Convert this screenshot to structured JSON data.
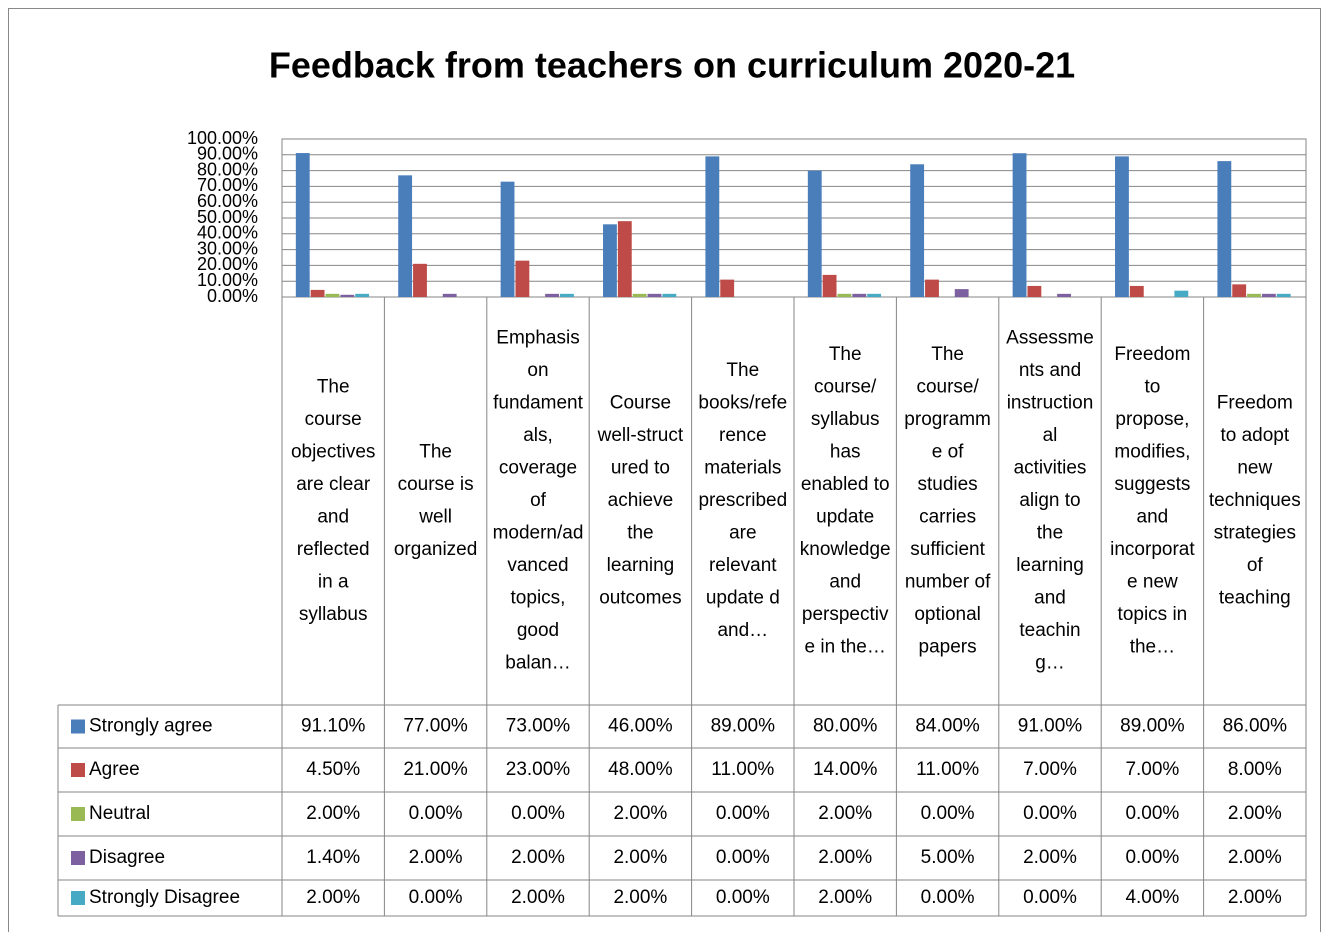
{
  "chart_data": {
    "type": "bar",
    "title": "Feedback from teachers on curriculum 2020-21",
    "categories": [
      "The course objectives are clear and reflected in a syllabus",
      "The course is well organized",
      "Emphasis on fundamentals, coverage of modern/advanced topics, good balan…",
      "Course well-structured to achieve the learning outcomes",
      "The books/reference materials prescribed are relevant update d and…",
      "The course/ syllabus has enabled to update knowledge and perspective in the…",
      "The course/ programme of studies carries sufficient number of optional papers",
      "Assessments and instructional activities align to the learning and teachin g…",
      "Freedom to propose, modifies, suggests and incorporate new topics in the…",
      "Freedom to adopt new techniques strategies of teaching"
    ],
    "series": [
      {
        "name": "Strongly agree",
        "color": "#4a7ebb",
        "values": [
          91.1,
          77,
          73,
          46,
          89,
          80,
          84,
          91,
          89,
          86
        ],
        "value_labels": [
          "91.10%",
          "77.00%",
          "73.00%",
          "46.00%",
          "89.00%",
          "80.00%",
          "84.00%",
          "91.00%",
          "89.00%",
          "86.00%"
        ]
      },
      {
        "name": "Agree",
        "color": "#be4b48",
        "values": [
          4.5,
          21,
          23,
          48,
          11,
          14,
          11,
          7,
          7,
          8
        ],
        "value_labels": [
          "4.50%",
          "21.00%",
          "23.00%",
          "48.00%",
          "11.00%",
          "14.00%",
          "11.00%",
          "7.00%",
          "7.00%",
          "8.00%"
        ]
      },
      {
        "name": "Neutral",
        "color": "#98b954",
        "values": [
          2,
          0,
          0,
          2,
          0,
          2,
          0,
          0,
          0,
          2
        ],
        "value_labels": [
          "2.00%",
          "0.00%",
          "0.00%",
          "2.00%",
          "0.00%",
          "2.00%",
          "0.00%",
          "0.00%",
          "0.00%",
          "2.00%"
        ]
      },
      {
        "name": "Disagree",
        "color": "#7d60a0",
        "values": [
          1.4,
          2,
          2,
          2,
          0,
          2,
          5,
          2,
          0,
          2
        ],
        "value_labels": [
          "1.40%",
          "2.00%",
          "2.00%",
          "2.00%",
          "0.00%",
          "2.00%",
          "5.00%",
          "2.00%",
          "0.00%",
          "2.00%"
        ]
      },
      {
        "name": "Strongly Disagree",
        "color": "#46aac5",
        "values": [
          2,
          0,
          2,
          2,
          0,
          2,
          0,
          0,
          4,
          2
        ],
        "value_labels": [
          "2.00%",
          "0.00%",
          "2.00%",
          "2.00%",
          "0.00%",
          "2.00%",
          "0.00%",
          "0.00%",
          "4.00%",
          "2.00%"
        ]
      }
    ],
    "ylim": [
      0,
      100
    ],
    "yticks": [
      {
        "value": 0,
        "label": "0.00%"
      },
      {
        "value": 10,
        "label": "10.00%"
      },
      {
        "value": 20,
        "label": "20.00%"
      },
      {
        "value": 30,
        "label": "30.00%"
      },
      {
        "value": 40,
        "label": "40.00%"
      },
      {
        "value": 50,
        "label": "50.00%"
      },
      {
        "value": 60,
        "label": "60.00%"
      },
      {
        "value": 70,
        "label": "70.00%"
      },
      {
        "value": 80,
        "label": "80.00%"
      },
      {
        "value": 90,
        "label": "90.00%"
      },
      {
        "value": 100,
        "label": "100.00%"
      }
    ],
    "grid": true
  }
}
